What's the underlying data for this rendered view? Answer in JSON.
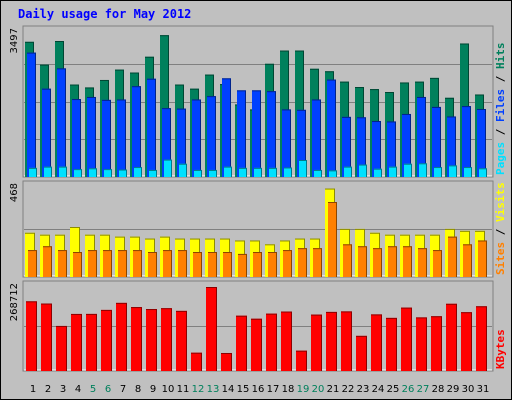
{
  "title": "Daily usage for May 2012",
  "colors": {
    "background": "#c0c0c0",
    "title": "#0000ff",
    "hits": "#00805c",
    "files": "#0040ff",
    "pages": "#00e0ff",
    "visits": "#ffff00",
    "sites": "#ff8000",
    "kbytes": "#ff0000",
    "weekend_label": "#00805c",
    "weekday_label": "#000000",
    "legend_sep": "#000000"
  },
  "legends": {
    "top": [
      {
        "text": "Pages",
        "color": "#00e0ff"
      },
      {
        "text": " / ",
        "color": "#000000"
      },
      {
        "text": "Files",
        "color": "#0040ff"
      },
      {
        "text": " / ",
        "color": "#000000"
      },
      {
        "text": "Hits",
        "color": "#00805c"
      }
    ],
    "middle": [
      {
        "text": "Sites",
        "color": "#ff8000"
      },
      {
        "text": " / ",
        "color": "#000000"
      },
      {
        "text": "Visits",
        "color": "#ffff00"
      }
    ],
    "bottom": [
      {
        "text": "KBytes",
        "color": "#ff0000"
      }
    ]
  },
  "chart_data": [
    {
      "type": "bar",
      "panel": "top",
      "ymax_label": "3497",
      "ylim": [
        0,
        3497
      ],
      "categories": [
        "1",
        "2",
        "3",
        "4",
        "5",
        "6",
        "7",
        "8",
        "9",
        "10",
        "11",
        "12",
        "13",
        "14",
        "15",
        "16",
        "17",
        "18",
        "19",
        "20",
        "21",
        "22",
        "23",
        "24",
        "25",
        "26",
        "27",
        "28",
        "29",
        "30",
        "31"
      ],
      "weekend_days": [
        "5",
        "6",
        "12",
        "13",
        "19",
        "20",
        "26",
        "27"
      ],
      "series": [
        {
          "name": "Hits",
          "values": [
            3260,
            2710,
            3280,
            2230,
            2160,
            2340,
            2590,
            2520,
            2900,
            3420,
            2230,
            2130,
            2470,
            2240,
            1750,
            1630,
            2730,
            3050,
            3050,
            2610,
            2550,
            2300,
            2170,
            2120,
            2050,
            2280,
            2300,
            2390,
            1910,
            3220,
            1990
          ]
        },
        {
          "name": "Files",
          "values": [
            3000,
            2130,
            2620,
            1880,
            1930,
            1860,
            1870,
            2190,
            2370,
            1660,
            1650,
            1870,
            1950,
            2380,
            2090,
            2090,
            2070,
            1630,
            1620,
            1870,
            2350,
            1450,
            1440,
            1350,
            1340,
            1520,
            1930,
            1690,
            1460,
            1710,
            1640
          ]
        },
        {
          "name": "Pages",
          "values": [
            220,
            250,
            250,
            190,
            210,
            190,
            180,
            240,
            170,
            420,
            320,
            170,
            170,
            250,
            220,
            220,
            220,
            230,
            410,
            170,
            160,
            250,
            300,
            200,
            250,
            320,
            330,
            240,
            280,
            240,
            210
          ]
        }
      ]
    },
    {
      "type": "bar",
      "panel": "middle",
      "ymax_label": "468",
      "ylim": [
        0,
        468
      ],
      "categories": [
        "1",
        "2",
        "3",
        "4",
        "5",
        "6",
        "7",
        "8",
        "9",
        "10",
        "11",
        "12",
        "13",
        "14",
        "15",
        "16",
        "17",
        "18",
        "19",
        "20",
        "21",
        "22",
        "23",
        "24",
        "25",
        "26",
        "27",
        "28",
        "29",
        "30",
        "31"
      ],
      "series": [
        {
          "name": "Visits",
          "values": [
            230,
            220,
            220,
            260,
            220,
            220,
            210,
            210,
            200,
            210,
            200,
            200,
            200,
            200,
            190,
            190,
            170,
            190,
            200,
            200,
            460,
            250,
            250,
            230,
            220,
            220,
            220,
            220,
            250,
            240,
            240
          ]
        },
        {
          "name": "Sites",
          "values": [
            140,
            160,
            140,
            130,
            140,
            140,
            140,
            140,
            130,
            140,
            140,
            130,
            130,
            130,
            120,
            130,
            130,
            140,
            150,
            150,
            390,
            170,
            160,
            150,
            160,
            160,
            150,
            140,
            210,
            170,
            190
          ]
        }
      ]
    },
    {
      "type": "bar",
      "panel": "bottom",
      "ymax_label": "268712",
      "ylim": [
        0,
        268712
      ],
      "categories": [
        "1",
        "2",
        "3",
        "4",
        "5",
        "6",
        "7",
        "8",
        "9",
        "10",
        "11",
        "12",
        "13",
        "14",
        "15",
        "16",
        "17",
        "18",
        "19",
        "20",
        "21",
        "22",
        "23",
        "24",
        "25",
        "26",
        "27",
        "28",
        "29",
        "30",
        "31"
      ],
      "series": [
        {
          "name": "KBytes",
          "values": [
            222900,
            215900,
            144100,
            182500,
            182600,
            195400,
            217900,
            204500,
            198200,
            200900,
            192300,
            58500,
            269000,
            57600,
            176900,
            167200,
            183500,
            190300,
            65000,
            180500,
            189000,
            190700,
            112400,
            181100,
            169900,
            202800,
            171500,
            175200,
            215000,
            188100,
            207100
          ]
        }
      ]
    }
  ]
}
